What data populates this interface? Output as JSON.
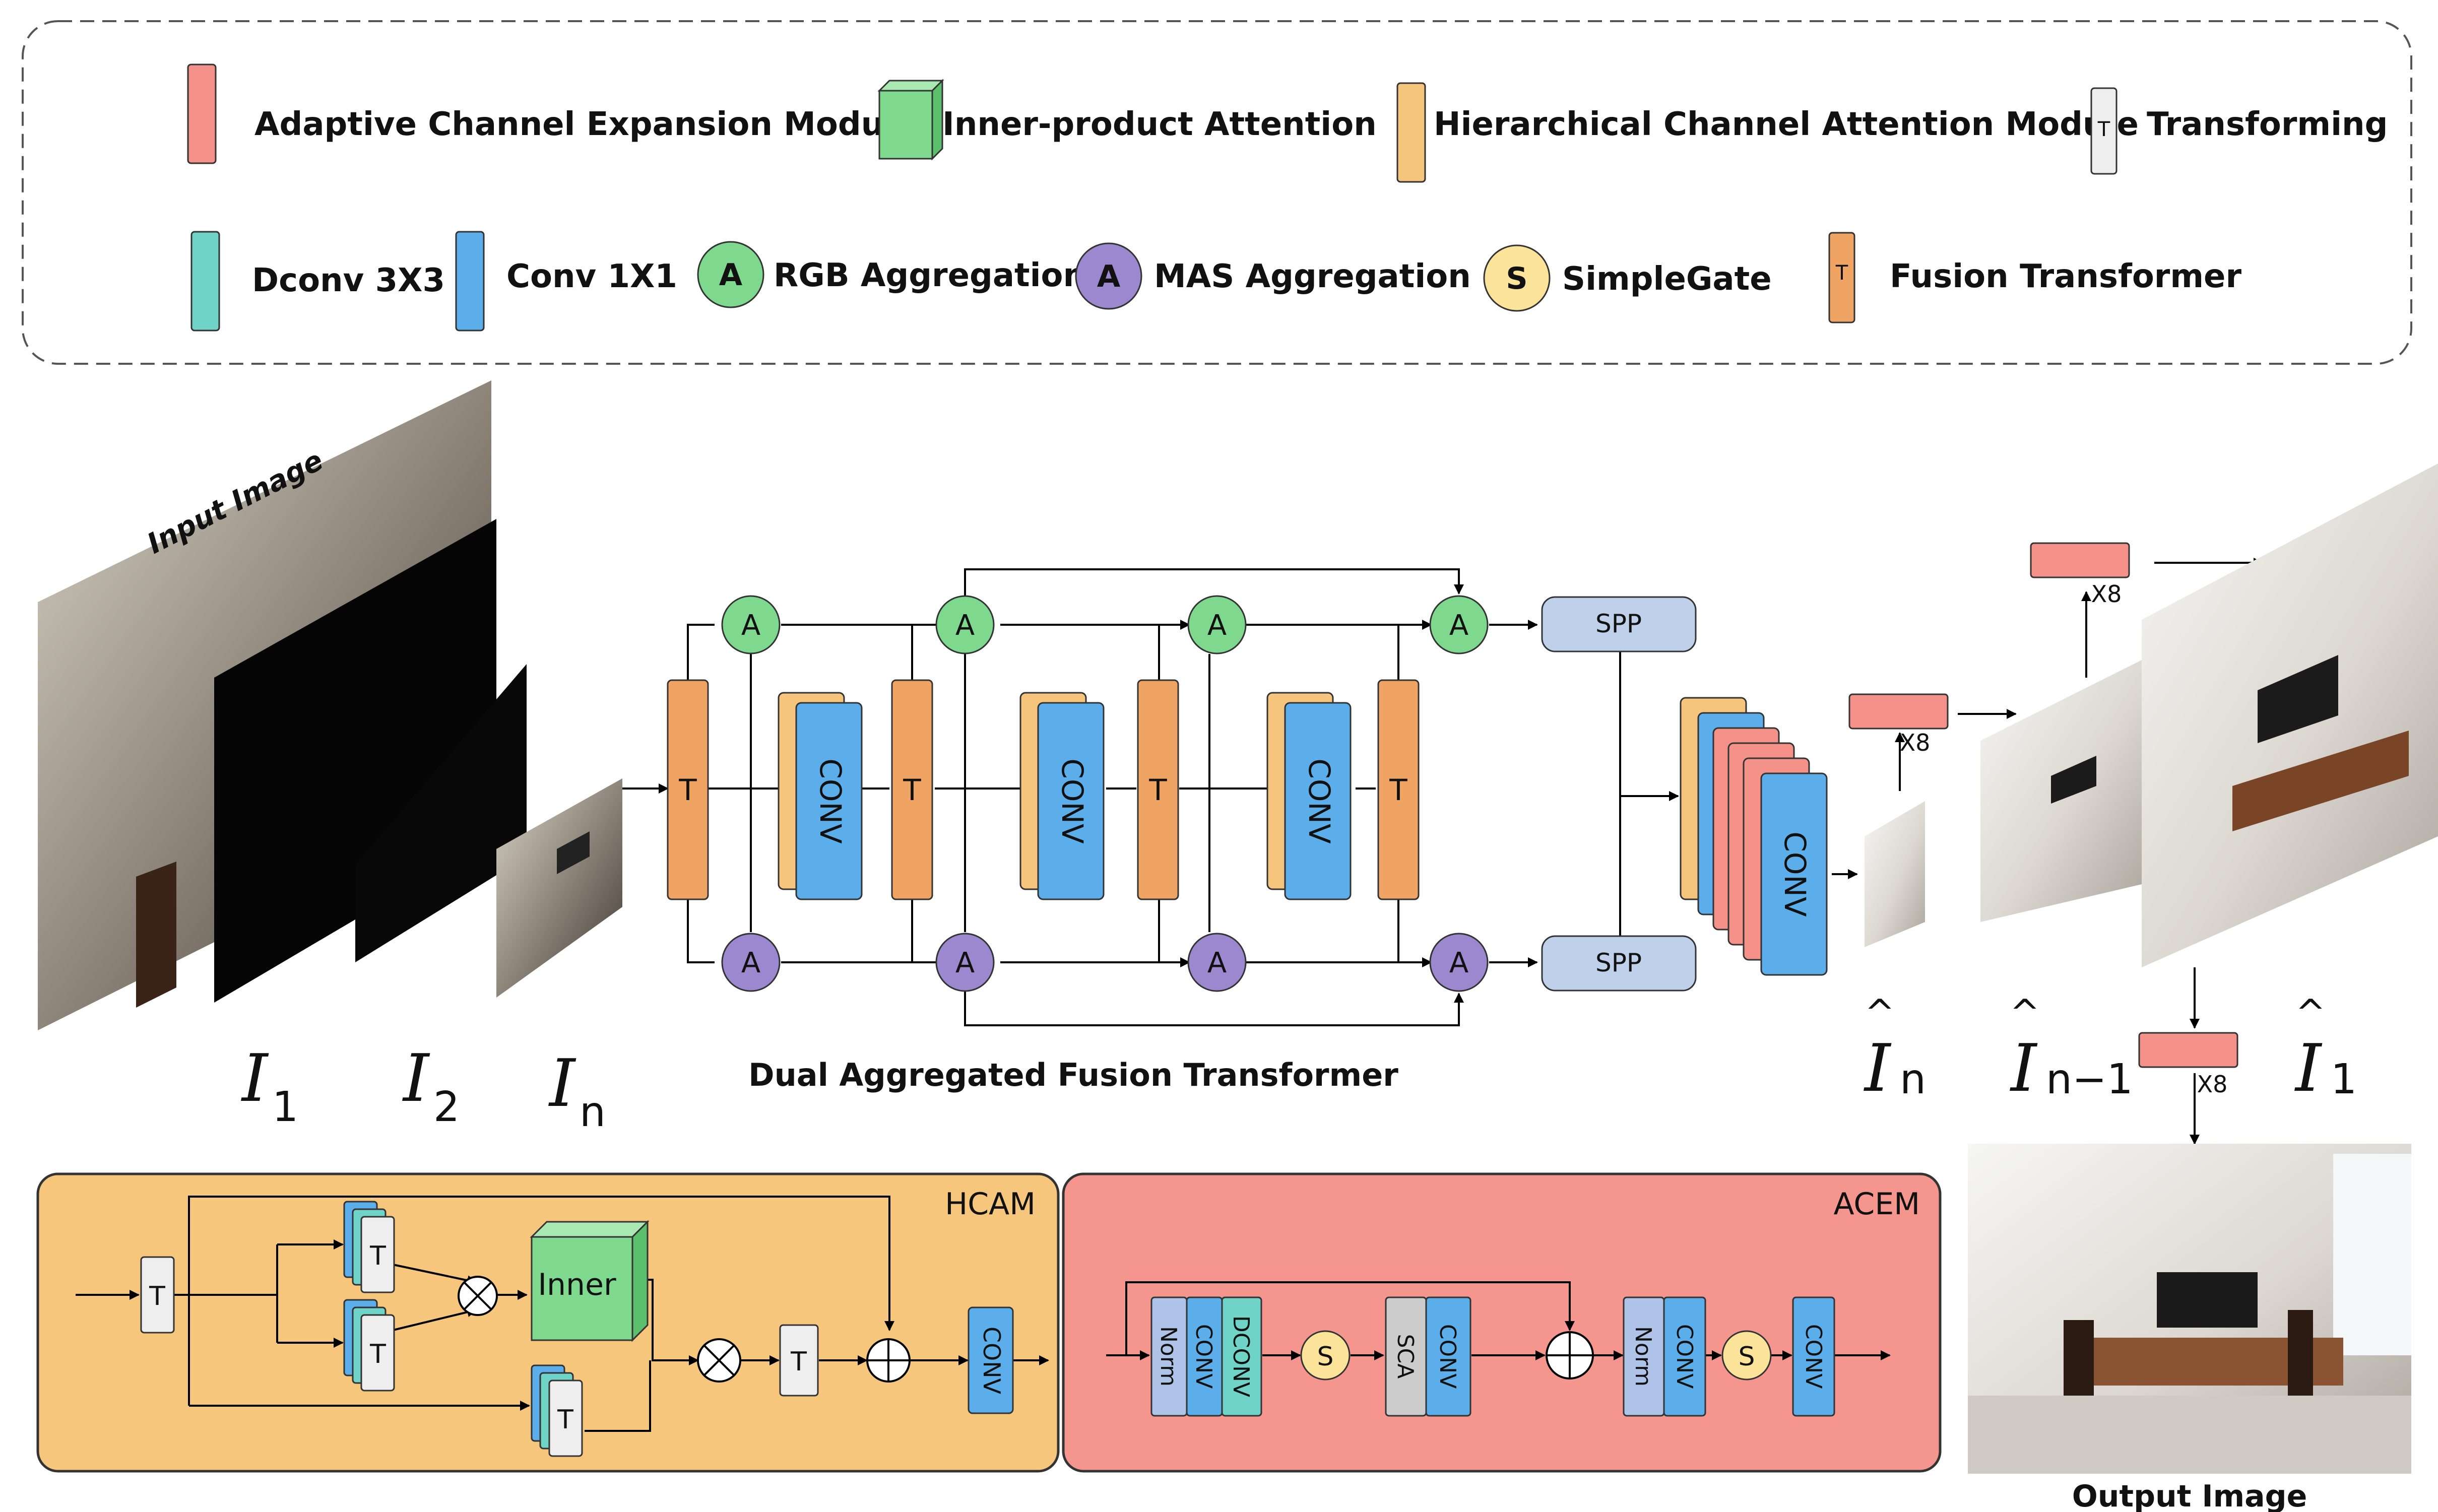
{
  "legend": {
    "acem": "Adaptive Channel Expansion Module",
    "inner": "Inner-product Attention",
    "hcam": "Hierarchical Channel Attention Module",
    "transforming": "Transforming",
    "dconv": "Dconv 3X3",
    "conv1x1": "Conv 1X1",
    "rgb": "RGB Aggregation",
    "mas": "MAS Aggregation",
    "simplegate": "SimpleGate",
    "fusion": "Fusion Transformer",
    "t_glyph": "T",
    "a_glyph": "A",
    "s_glyph": "S"
  },
  "colors": {
    "acem": "#F4928A",
    "inner": "#7ED98E",
    "hcam": "#F5C57D",
    "transforming": "#EEEEEE",
    "dconv": "#6FD3C7",
    "conv": "#5BAEEA",
    "rgb": "#7ED98E",
    "mas": "#9B88CF",
    "simplegate": "#FCE39A",
    "fusion": "#F0A464",
    "spp": "#BFD0EA",
    "norm": "#AFC3E8",
    "sca": "#CCCCCC",
    "hcam_panel": "#F5C67C",
    "acem_panel": "#F4968E"
  },
  "input": {
    "caption": "Input Image",
    "labels": [
      {
        "base": "I",
        "sub": "1"
      },
      {
        "base": "I",
        "sub": "2"
      },
      {
        "base": "I",
        "sub": "n"
      }
    ]
  },
  "dual": {
    "title": "Dual Aggregated Fusion Transformer",
    "t": "T",
    "a": "A",
    "conv": "CONV",
    "spp": "SPP"
  },
  "output": {
    "x8": "X8",
    "hat": "^",
    "labels": [
      {
        "base": "I",
        "sub": "n"
      },
      {
        "base": "I",
        "sub": "n−1"
      },
      {
        "base": "I",
        "sub": "1"
      }
    ],
    "caption": "Output Image"
  },
  "hcam": {
    "title": "HCAM",
    "t": "T",
    "inner": "Inner",
    "conv": "CONV"
  },
  "acem": {
    "title": "ACEM",
    "norm": "Norm",
    "conv": "CONV",
    "dconv": "DCONV",
    "s": "S",
    "sca": "SCA"
  }
}
